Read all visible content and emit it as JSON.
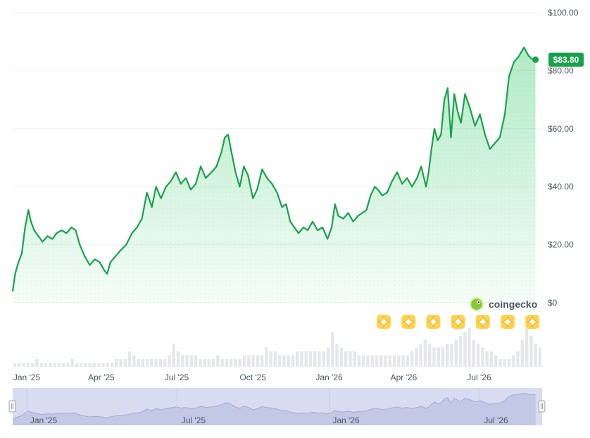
{
  "chart_data": {
    "type": "area",
    "title": "",
    "xlabel": "",
    "ylabel": "",
    "x_range": [
      "2024-12-15",
      "2026-09-15"
    ],
    "ylim": [
      0,
      100
    ],
    "y_ticks": [
      {
        "value": 0,
        "label": "$0"
      },
      {
        "value": 20,
        "label": "$20.00"
      },
      {
        "value": 40,
        "label": "$40.00"
      },
      {
        "value": 60,
        "label": "$60.00"
      },
      {
        "value": 80,
        "label": "$80.00"
      },
      {
        "value": 100,
        "label": "$100.00"
      }
    ],
    "x_ticks": [
      {
        "date": "2025-01-01",
        "label": "Jan '25"
      },
      {
        "date": "2025-04-01",
        "label": "Apr '25"
      },
      {
        "date": "2025-07-01",
        "label": "Jul '25"
      },
      {
        "date": "2025-10-01",
        "label": "Oct '25"
      },
      {
        "date": "2026-01-01",
        "label": "Jan '26"
      },
      {
        "date": "2026-04-01",
        "label": "Apr '26"
      },
      {
        "date": "2026-07-01",
        "label": "Jul '26"
      }
    ],
    "series": [
      {
        "color": "#16a34a",
        "points": [
          [
            "2024-12-15",
            4
          ],
          [
            "2024-12-18",
            10
          ],
          [
            "2024-12-22",
            14
          ],
          [
            "2024-12-26",
            17
          ],
          [
            "2024-12-30",
            26
          ],
          [
            "2025-01-03",
            32
          ],
          [
            "2025-01-06",
            28
          ],
          [
            "2025-01-10",
            25
          ],
          [
            "2025-01-15",
            23
          ],
          [
            "2025-01-20",
            21
          ],
          [
            "2025-01-26",
            23
          ],
          [
            "2025-02-01",
            22
          ],
          [
            "2025-02-06",
            24
          ],
          [
            "2025-02-12",
            25
          ],
          [
            "2025-02-18",
            24
          ],
          [
            "2025-02-24",
            26
          ],
          [
            "2025-03-01",
            25
          ],
          [
            "2025-03-06",
            20
          ],
          [
            "2025-03-12",
            16
          ],
          [
            "2025-03-18",
            13
          ],
          [
            "2025-03-24",
            15
          ],
          [
            "2025-03-30",
            14
          ],
          [
            "2025-04-05",
            11
          ],
          [
            "2025-04-08",
            10
          ],
          [
            "2025-04-12",
            14
          ],
          [
            "2025-04-18",
            16
          ],
          [
            "2025-04-24",
            18
          ],
          [
            "2025-05-01",
            20
          ],
          [
            "2025-05-08",
            24
          ],
          [
            "2025-05-14",
            26
          ],
          [
            "2025-05-20",
            29
          ],
          [
            "2025-05-26",
            38
          ],
          [
            "2025-06-01",
            33
          ],
          [
            "2025-06-06",
            40
          ],
          [
            "2025-06-12",
            36
          ],
          [
            "2025-06-18",
            40
          ],
          [
            "2025-06-24",
            42
          ],
          [
            "2025-06-30",
            45
          ],
          [
            "2025-07-06",
            41
          ],
          [
            "2025-07-12",
            43
          ],
          [
            "2025-07-18",
            39
          ],
          [
            "2025-07-24",
            41
          ],
          [
            "2025-07-30",
            47
          ],
          [
            "2025-08-05",
            43
          ],
          [
            "2025-08-12",
            45
          ],
          [
            "2025-08-18",
            47
          ],
          [
            "2025-08-24",
            52
          ],
          [
            "2025-08-28",
            57
          ],
          [
            "2025-09-01",
            58
          ],
          [
            "2025-09-05",
            52
          ],
          [
            "2025-09-10",
            45
          ],
          [
            "2025-09-15",
            40
          ],
          [
            "2025-09-20",
            47
          ],
          [
            "2025-09-25",
            44
          ],
          [
            "2025-10-01",
            36
          ],
          [
            "2025-10-06",
            39
          ],
          [
            "2025-10-12",
            46
          ],
          [
            "2025-10-18",
            43
          ],
          [
            "2025-10-24",
            41
          ],
          [
            "2025-10-30",
            38
          ],
          [
            "2025-11-05",
            33
          ],
          [
            "2025-11-10",
            34
          ],
          [
            "2025-11-15",
            28
          ],
          [
            "2025-11-20",
            26
          ],
          [
            "2025-11-25",
            24
          ],
          [
            "2025-12-01",
            26
          ],
          [
            "2025-12-06",
            25
          ],
          [
            "2025-12-12",
            28
          ],
          [
            "2025-12-18",
            25
          ],
          [
            "2025-12-24",
            26
          ],
          [
            "2025-12-30",
            22
          ],
          [
            "2026-01-04",
            26
          ],
          [
            "2026-01-08",
            34
          ],
          [
            "2026-01-12",
            30
          ],
          [
            "2026-01-18",
            29
          ],
          [
            "2026-01-24",
            31
          ],
          [
            "2026-01-30",
            28
          ],
          [
            "2026-02-05",
            30
          ],
          [
            "2026-02-10",
            31
          ],
          [
            "2026-02-15",
            32
          ],
          [
            "2026-02-20",
            37
          ],
          [
            "2026-02-25",
            40
          ],
          [
            "2026-03-01",
            39
          ],
          [
            "2026-03-06",
            37
          ],
          [
            "2026-03-12",
            38
          ],
          [
            "2026-03-18",
            42
          ],
          [
            "2026-03-24",
            45
          ],
          [
            "2026-03-30",
            41
          ],
          [
            "2026-04-05",
            43
          ],
          [
            "2026-04-11",
            40
          ],
          [
            "2026-04-17",
            43
          ],
          [
            "2026-04-22",
            47
          ],
          [
            "2026-04-28",
            40
          ],
          [
            "2026-05-01",
            45
          ],
          [
            "2026-05-04",
            52
          ],
          [
            "2026-05-08",
            60
          ],
          [
            "2026-05-12",
            56
          ],
          [
            "2026-05-16",
            58
          ],
          [
            "2026-05-20",
            70
          ],
          [
            "2026-05-24",
            74
          ],
          [
            "2026-05-28",
            57
          ],
          [
            "2026-06-01",
            72
          ],
          [
            "2026-06-05",
            66
          ],
          [
            "2026-06-09",
            62
          ],
          [
            "2026-06-14",
            72
          ],
          [
            "2026-06-20",
            67
          ],
          [
            "2026-06-26",
            61
          ],
          [
            "2026-07-02",
            65
          ],
          [
            "2026-07-08",
            58
          ],
          [
            "2026-07-14",
            53
          ],
          [
            "2026-07-20",
            55
          ],
          [
            "2026-07-26",
            57
          ],
          [
            "2026-08-01",
            65
          ],
          [
            "2026-08-06",
            78
          ],
          [
            "2026-08-12",
            83
          ],
          [
            "2026-08-18",
            85
          ],
          [
            "2026-08-24",
            88
          ],
          [
            "2026-08-30",
            85
          ],
          [
            "2026-09-03",
            84
          ],
          [
            "2026-09-07",
            83.8
          ]
        ]
      }
    ],
    "current_price": {
      "label": "$83.80",
      "value": 83.8,
      "color": "#16a34a"
    },
    "volume": {
      "color": "#e5e7eb",
      "levels": [
        0.1,
        0.1,
        0.1,
        0.1,
        0.1,
        0.2,
        0.1,
        0.1,
        0.1,
        0.1,
        0.1,
        0.1,
        0.1,
        0.2,
        0.1,
        0.1,
        0.1,
        0.1,
        0.1,
        0.1,
        0.1,
        0.1,
        0.1,
        0.2,
        0.2,
        0.2,
        0.4,
        0.3,
        0.2,
        0.2,
        0.2,
        0.2,
        0.2,
        0.2,
        0.2,
        0.3,
        0.6,
        0.4,
        0.3,
        0.3,
        0.3,
        0.3,
        0.2,
        0.2,
        0.2,
        0.2,
        0.3,
        0.2,
        0.2,
        0.2,
        0.2,
        0.2,
        0.3,
        0.3,
        0.3,
        0.3,
        0.3,
        0.5,
        0.4,
        0.4,
        0.3,
        0.3,
        0.3,
        0.3,
        0.4,
        0.4,
        0.4,
        0.4,
        0.4,
        0.4,
        0.4,
        0.5,
        0.9,
        0.6,
        0.5,
        0.4,
        0.4,
        0.4,
        0.3,
        0.3,
        0.3,
        0.3,
        0.3,
        0.3,
        0.3,
        0.3,
        0.3,
        0.3,
        0.3,
        0.3,
        0.4,
        0.5,
        0.6,
        0.7,
        0.6,
        0.5,
        0.5,
        0.5,
        0.6,
        0.6,
        0.7,
        0.8,
        0.9,
        1.0,
        0.7,
        0.6,
        0.5,
        0.4,
        0.4,
        0.3,
        0.2,
        0.2,
        0.2,
        0.3,
        0.4,
        0.7,
        1.0,
        0.8,
        0.6,
        0.5
      ]
    }
  },
  "navigator": {
    "labels": [
      {
        "date": "2025-01-01",
        "text": "Jan '25"
      },
      {
        "date": "2025-07-01",
        "text": "Jul '25"
      },
      {
        "date": "2026-01-01",
        "text": "Jan '26"
      },
      {
        "date": "2026-07-01",
        "text": "Jul '26"
      }
    ],
    "fill_color": "#d9dcf1"
  },
  "brand": {
    "name": "coingecko"
  },
  "event_markers": {
    "count": 7,
    "icon": "sparkle-icon",
    "color": "#fcd34d"
  }
}
